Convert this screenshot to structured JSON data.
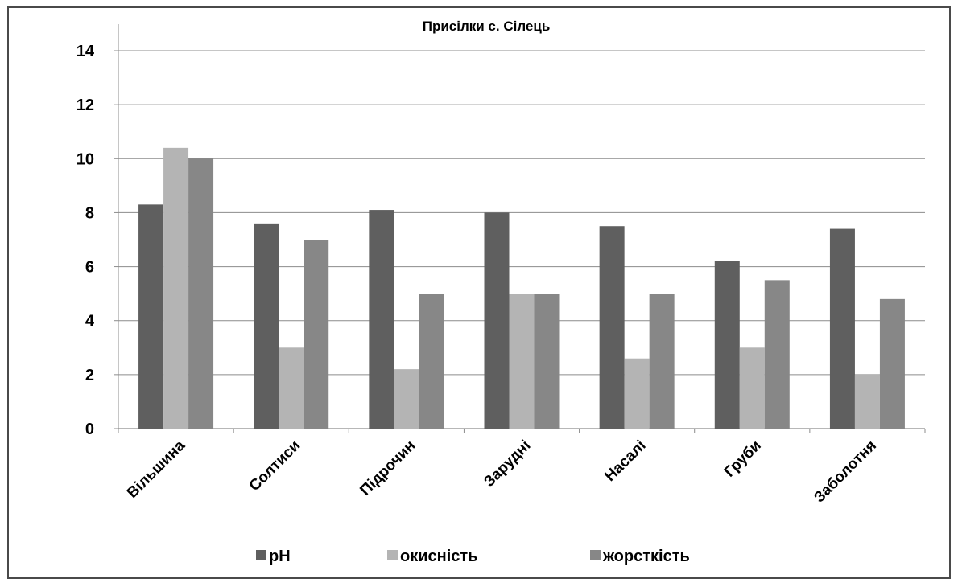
{
  "chart_data": {
    "type": "bar",
    "title": "Присілки с. Сілець",
    "xlabel": "",
    "ylabel": "",
    "ylim": [
      0,
      14
    ],
    "yticks": [
      0,
      2,
      4,
      6,
      8,
      10,
      12,
      14
    ],
    "grid": true,
    "legend_position": "bottom",
    "categories": [
      "Вільшина",
      "Солтиси",
      "Підрочин",
      "Заруднi",
      "Насалі",
      "Груби",
      "Заболотня"
    ],
    "series": [
      {
        "name": "pH",
        "color": "#5f5f5f",
        "values": [
          8.3,
          7.6,
          8.1,
          8.0,
          7.5,
          6.2,
          7.4
        ]
      },
      {
        "name": "окисність",
        "color": "#b4b4b4",
        "values": [
          10.4,
          3.0,
          2.2,
          5.0,
          2.6,
          3.0,
          2.0
        ]
      },
      {
        "name": "жорсткість",
        "color": "#878787",
        "values": [
          10.0,
          7.0,
          5.0,
          5.0,
          5.0,
          5.5,
          4.8
        ]
      }
    ]
  }
}
